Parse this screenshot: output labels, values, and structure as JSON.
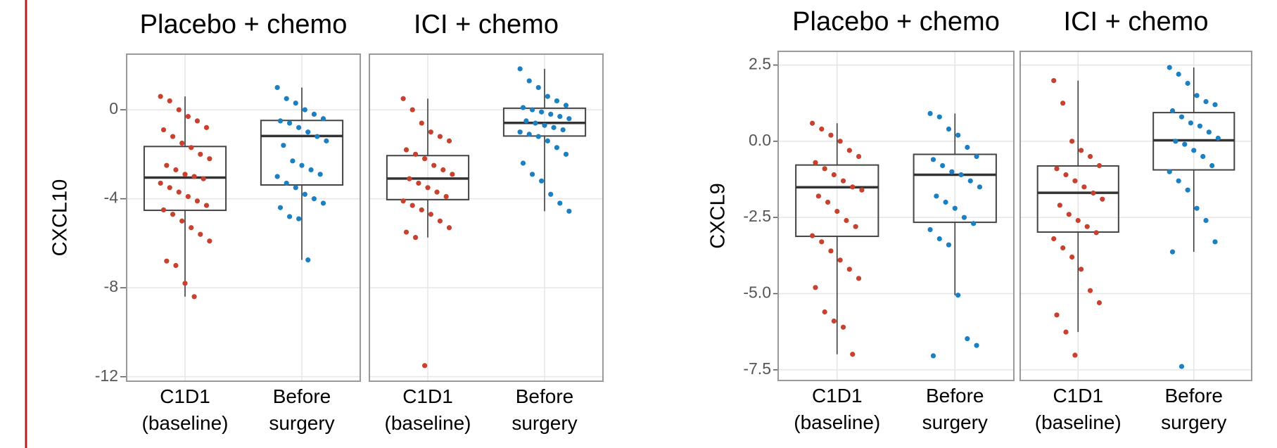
{
  "chart_data": [
    {
      "type": "box",
      "ylabel": "CXCL10",
      "ylim": [
        -12.2,
        2.5
      ],
      "yticks": [
        -12,
        -8,
        -4,
        0
      ],
      "grid": true,
      "categories": [
        "C1D1 (baseline)",
        "Before surgery"
      ],
      "colors": [
        "#c8412f",
        "#1b7fc4"
      ],
      "facets": [
        {
          "title": "Placebo + chemo",
          "boxes": [
            {
              "whislo": -8.4,
              "q1": -4.52,
              "med": -3.05,
              "q3": -1.65,
              "whishi": 0.6,
              "points": [
                0.6,
                0.4,
                0,
                -0.3,
                -0.5,
                -0.8,
                -0.9,
                -1.2,
                -1.5,
                -1.7,
                -2.0,
                -2.2,
                -2.5,
                -2.7,
                -2.9,
                -3.0,
                -3.1,
                -3.3,
                -3.5,
                -3.7,
                -3.9,
                -4.1,
                -4.3,
                -4.5,
                -4.7,
                -5.0,
                -5.3,
                -5.6,
                -5.9,
                -6.8,
                -7.0,
                -7.8,
                -8.4
              ]
            },
            {
              "whislo": -6.75,
              "q1": -3.38,
              "med": -1.18,
              "q3": -0.48,
              "whishi": 1.0,
              "points": [
                1.0,
                0.5,
                0.3,
                0,
                -0.2,
                -0.4,
                -0.5,
                -0.6,
                -0.8,
                -1.0,
                -1.2,
                -1.4,
                -1.6,
                -2.3,
                -2.5,
                -2.7,
                -2.9,
                -3.0,
                -3.3,
                -3.5,
                -3.8,
                -4.0,
                -4.2,
                -4.4,
                -4.8,
                -4.9,
                -6.75
              ]
            }
          ]
        },
        {
          "title": "ICI + chemo",
          "boxes": [
            {
              "whislo": -5.74,
              "q1": -4.04,
              "med": -3.09,
              "q3": -2.06,
              "whishi": 0.5,
              "points": [
                0.5,
                0,
                -0.6,
                -1.0,
                -1.2,
                -1.4,
                -1.8,
                -2.0,
                -2.2,
                -2.5,
                -2.7,
                -2.9,
                -3.1,
                -3.3,
                -3.5,
                -3.7,
                -3.9,
                -4.1,
                -4.3,
                -4.5,
                -4.7,
                -5.0,
                -5.3,
                -5.5,
                -5.74,
                -11.5
              ]
            },
            {
              "whislo": -4.56,
              "q1": -1.18,
              "med": -0.59,
              "q3": 0.07,
              "whishi": 1.84,
              "points": [
                1.84,
                1.3,
                1.0,
                0.6,
                0.4,
                0.2,
                0.1,
                0,
                -0.1,
                -0.2,
                -0.3,
                -0.4,
                -0.5,
                -0.6,
                -0.7,
                -0.8,
                -0.9,
                -1.0,
                -1.1,
                -1.2,
                -1.4,
                -1.7,
                -2.0,
                -2.4,
                -2.9,
                -3.2,
                -3.8,
                -4.2,
                -4.56
              ]
            }
          ]
        }
      ]
    },
    {
      "type": "box",
      "ylabel": "CXCL9",
      "ylim": [
        -7.85,
        2.95
      ],
      "yticks": [
        {
          "value": -7.5,
          "label": "-7.5"
        },
        {
          "value": -5,
          "label": "-5.0"
        },
        {
          "value": -2.5,
          "label": "-2.5"
        },
        {
          "value": 0,
          "label": "0.0"
        },
        {
          "value": 2.5,
          "label": "2.5"
        }
      ],
      "grid": true,
      "categories": [
        "C1D1 (baseline)",
        "Before surgery"
      ],
      "colors": [
        "#c8412f",
        "#1b7fc4"
      ],
      "facets": [
        {
          "title": "Placebo + chemo",
          "boxes": [
            {
              "whislo": -6.99,
              "q1": -3.12,
              "med": -1.51,
              "q3": -0.78,
              "whishi": 0.59,
              "points": [
                0.59,
                0.4,
                0.2,
                0,
                -0.3,
                -0.5,
                -0.7,
                -0.9,
                -1.1,
                -1.3,
                -1.5,
                -1.6,
                -1.8,
                -2.0,
                -2.3,
                -2.6,
                -2.8,
                -3.1,
                -3.3,
                -3.6,
                -3.9,
                -4.2,
                -4.5,
                -4.8,
                -5.6,
                -5.9,
                -6.1,
                -6.99
              ]
            },
            {
              "whislo": -5.05,
              "q1": -2.66,
              "med": -1.1,
              "q3": -0.43,
              "whishi": 0.91,
              "points": [
                0.91,
                0.8,
                0.4,
                0.2,
                -0.2,
                -0.5,
                -0.6,
                -0.8,
                -1.0,
                -1.1,
                -1.3,
                -1.5,
                -1.8,
                -2.0,
                -2.2,
                -2.5,
                -2.7,
                -2.9,
                -3.2,
                -3.4,
                -5.05,
                -6.48,
                -6.7,
                -7.04
              ]
            }
          ]
        },
        {
          "title": "ICI + chemo",
          "boxes": [
            {
              "whislo": -6.26,
              "q1": -2.98,
              "med": -1.69,
              "q3": -0.81,
              "whishi": 1.99,
              "points": [
                1.99,
                1.25,
                0,
                -0.3,
                -0.5,
                -0.8,
                -0.9,
                -1.1,
                -1.3,
                -1.5,
                -1.7,
                -1.9,
                -2.1,
                -2.4,
                -2.6,
                -2.8,
                -3.0,
                -3.2,
                -3.5,
                -3.8,
                -4.2,
                -4.9,
                -5.3,
                -5.7,
                -6.26,
                -7.02
              ]
            },
            {
              "whislo": -3.63,
              "q1": -0.94,
              "med": 0.03,
              "q3": 0.94,
              "whishi": 2.42,
              "points": [
                2.42,
                2.2,
                1.9,
                1.5,
                1.3,
                1.2,
                1.0,
                0.8,
                0.6,
                0.5,
                0.3,
                0.1,
                0,
                -0.1,
                -0.3,
                -0.5,
                -0.8,
                -1.0,
                -1.3,
                -1.6,
                -2.2,
                -2.6,
                -3.3,
                -3.63,
                -7.39
              ]
            }
          ]
        }
      ]
    }
  ]
}
